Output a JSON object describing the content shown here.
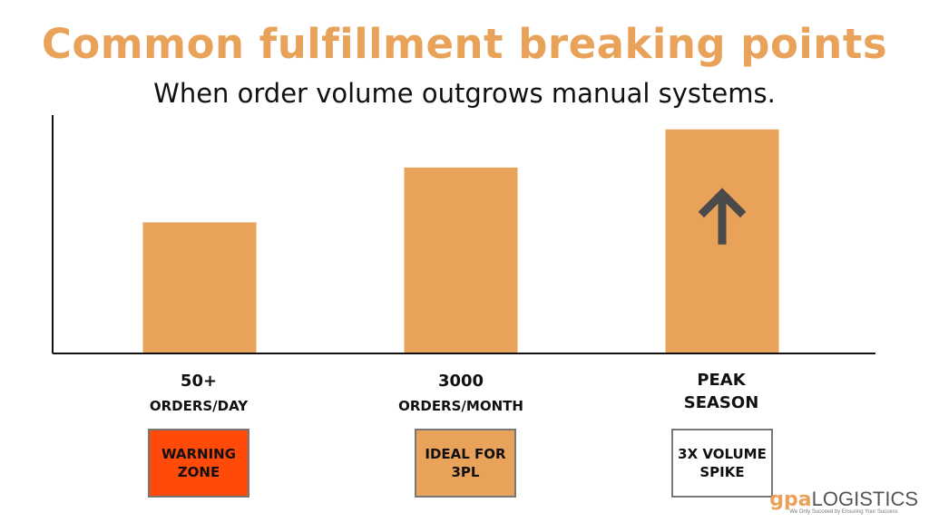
{
  "title": "Common fulfillment breaking points",
  "subtitle": "When order volume outgrows manual systems.",
  "colors": {
    "accent": "#E9A25A",
    "warning": "#FF4A0A",
    "ideal": "#E9A25A",
    "spike": "#FFFFFF",
    "arrow": "#4A4A4A"
  },
  "categories": [
    {
      "line1": "50+",
      "line2": "ORDERS/DAY",
      "badge": "WARNING\nZONE",
      "badge_color": "#FF4A0A"
    },
    {
      "line1": "3000",
      "line2": "ORDERS/MONTH",
      "badge": "IDEAL FOR\n3PL",
      "badge_color": "#E9A25A"
    },
    {
      "line1": "PEAK",
      "line2": "SEASON",
      "badge": "3X VOLUME\nSPIKE",
      "badge_color": "#FFFFFF"
    }
  ],
  "chart_data": {
    "type": "bar",
    "categories": [
      "50+ ORDERS/DAY",
      "3000 ORDERS/MONTH",
      "PEAK SEASON"
    ],
    "values": [
      55,
      78,
      94
    ],
    "ylim": [
      0,
      100
    ],
    "grid": false,
    "icon_on_bar": {
      "category": "PEAK SEASON",
      "icon": "up-arrow-icon"
    }
  },
  "logo": {
    "mark": "gpa",
    "word": "LOGISTICS",
    "tagline": "We Only Succeed by Ensuring Your Success"
  }
}
